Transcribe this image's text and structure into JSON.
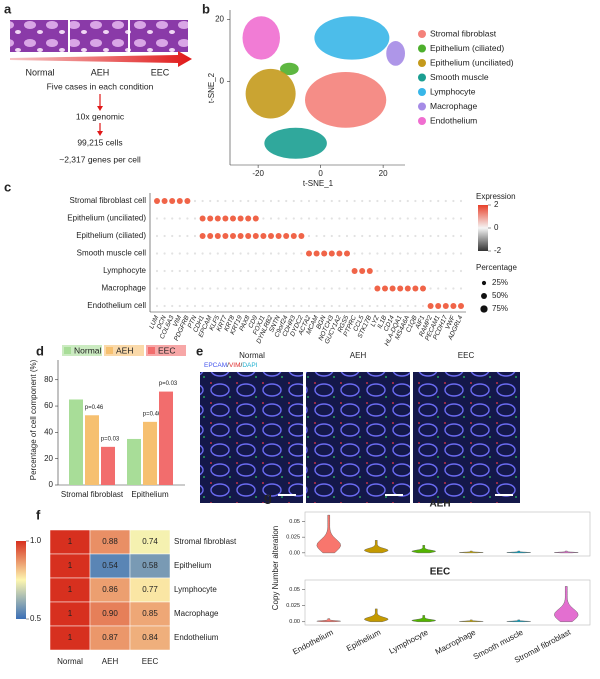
{
  "panel_labels": [
    "a",
    "b",
    "c",
    "d",
    "e",
    "f",
    "g"
  ],
  "a": {
    "conditions": [
      "Normal",
      "AEH",
      "EEC"
    ],
    "steps": [
      "Five cases in each condition",
      "10x genomic",
      "99,215 cells",
      "~2,317 genes per cell"
    ]
  },
  "b": {
    "type": "scatter",
    "x_label": "t-SNE_1",
    "y_label": "t-SNE_2",
    "xlim": [
      -29,
      27
    ],
    "ylim": [
      -27,
      23
    ],
    "xticks": [
      -20,
      0,
      20
    ],
    "yticks": [
      0,
      20
    ],
    "clusters": [
      {
        "name": "Stromal fibroblast",
        "color": "#f4817a",
        "center": [
          8,
          -6
        ],
        "spread": [
          13,
          9
        ]
      },
      {
        "name": "Epithelium (ciliated)",
        "color": "#4daf2c",
        "center": [
          -10,
          4
        ],
        "spread": [
          3,
          2
        ]
      },
      {
        "name": "Epithelium (unciliated)",
        "color": "#c49a1c",
        "center": [
          -16,
          -4
        ],
        "spread": [
          8,
          8
        ]
      },
      {
        "name": "Smooth muscle",
        "color": "#1a9e91",
        "center": [
          -8,
          -20
        ],
        "spread": [
          10,
          5
        ]
      },
      {
        "name": "Lymphocyte",
        "color": "#38b6e8",
        "center": [
          10,
          14
        ],
        "spread": [
          12,
          7
        ]
      },
      {
        "name": "Macrophage",
        "color": "#a58be6",
        "center": [
          24,
          9
        ],
        "spread": [
          3,
          4
        ]
      },
      {
        "name": "Endothelium",
        "color": "#f06ed0",
        "center": [
          -19,
          14
        ],
        "spread": [
          6,
          7
        ]
      }
    ]
  },
  "c": {
    "type": "dotplot",
    "rows": [
      "Stromal fibroblast cell",
      "Epithelium (unciliated)",
      "Epithelium (ciliated)",
      "Smooth muscle cell",
      "Lymphocyte",
      "Macrophage",
      "Endothelium cell"
    ],
    "genes": [
      "LUM",
      "DCN",
      "COL6A3",
      "VIM",
      "PDGFRB",
      "PTN",
      "CDH1",
      "EPCAM",
      "KLF5",
      "KRT7",
      "KRT8",
      "KRT19",
      "PAX8",
      "CD9",
      "FOXJ1",
      "DYNLRB2",
      "SNTN",
      "C9orf24",
      "CDHR3",
      "DYDC2",
      "ACTA2",
      "MCAM",
      "BGN",
      "NOTCH3",
      "GUCY1A2",
      "RGS5",
      "PTPRC",
      "CCL5",
      "STK17B",
      "LYZ",
      "IL1B",
      "CD14",
      "HLA-DQA1",
      "MS4A6A",
      "C1QB",
      "AIF1",
      "RAMP2",
      "PECAM1",
      "PCDH17",
      "VWF",
      "ADGRL4"
    ],
    "markers": [
      [
        "LUM",
        "DCN",
        "COL6A3",
        "VIM",
        "PDGFRB"
      ],
      [
        "CDH1",
        "EPCAM",
        "KLF5",
        "KRT7",
        "KRT8",
        "KRT19",
        "PAX8",
        "CD9"
      ],
      [
        "CDH1",
        "EPCAM",
        "KLF5",
        "KRT7",
        "KRT8",
        "KRT19",
        "PAX8",
        "CD9",
        "FOXJ1",
        "DYNLRB2",
        "SNTN",
        "C9orf24",
        "CDHR3",
        "DYDC2"
      ],
      [
        "ACTA2",
        "MCAM",
        "BGN",
        "NOTCH3",
        "GUCY1A2",
        "RGS5"
      ],
      [
        "PTPRC",
        "CCL5",
        "STK17B"
      ],
      [
        "LYZ",
        "IL1B",
        "CD14",
        "HLA-DQA1",
        "MS4A6A",
        "C1QB",
        "AIF1"
      ],
      [
        "RAMP2",
        "PECAM1",
        "PCDH17",
        "VWF",
        "ADGRL4"
      ]
    ],
    "expression_title": "Expression",
    "expression_ticks": [
      2,
      0,
      -2
    ],
    "percentage_title": "Percentage",
    "percentage_ticks": [
      {
        "value": 25,
        "label": "25%"
      },
      {
        "value": 50,
        "label": "50%"
      },
      {
        "value": 75,
        "label": "75%"
      }
    ]
  },
  "d": {
    "type": "bar",
    "y_label": "Percentage of cell component (%)",
    "categories": [
      "Stromal fibroblast",
      "Epithelium"
    ],
    "series": [
      {
        "name": "Normal",
        "color": "#a8dd98",
        "values": [
          65,
          35
        ]
      },
      {
        "name": "AEH",
        "color": "#f6c070",
        "values": [
          53,
          48
        ]
      },
      {
        "name": "EEC",
        "color": "#f26d6d",
        "values": [
          29,
          71
        ]
      }
    ],
    "annotations": [
      "p=0.46",
      "p=0.03",
      "p=0.46",
      "p=0.03"
    ],
    "ylim": [
      0,
      95
    ],
    "yticks": [
      0,
      20,
      40,
      60,
      80
    ]
  },
  "e": {
    "conditions": [
      "Normal",
      "AEH",
      "EEC"
    ],
    "stain": [
      "EPCAM",
      "/",
      "VIM",
      "/",
      "DAPI"
    ]
  },
  "f": {
    "type": "heatmap",
    "rows": [
      "Stromal fibroblast",
      "Epithelium",
      "Lymphocyte",
      "Macrophage",
      "Endothelium"
    ],
    "columns": [
      "Normal",
      "AEH",
      "EEC"
    ],
    "values": [
      [
        1,
        0.88,
        0.74
      ],
      [
        1,
        0.54,
        0.58
      ],
      [
        1,
        0.86,
        0.77
      ],
      [
        1,
        0.9,
        0.85
      ],
      [
        1,
        0.87,
        0.84
      ]
    ],
    "value_labels": [
      [
        "1",
        "0.88",
        "0.74"
      ],
      [
        "1",
        "0.54",
        "0.58"
      ],
      [
        "1",
        "0.86",
        "0.77"
      ],
      [
        "1",
        "0.90",
        "0.85"
      ],
      [
        "1",
        "0.87",
        "0.84"
      ]
    ],
    "colorbar_ticks": [
      {
        "value": 1,
        "label": "1.0"
      },
      {
        "value": 0.5,
        "label": "0.5"
      }
    ]
  },
  "g": {
    "type": "violin",
    "y_label": "Copy  Number alteration",
    "categories": [
      "Endothelium",
      "Epithelium",
      "Lymphocyte",
      "Macrophage",
      "Smooth muscle",
      "Stromal fibroblast"
    ],
    "colors": [
      "#f8766d",
      "#c49a00",
      "#53b400",
      "#c8a800",
      "#00a6c8",
      "#e36fd0"
    ],
    "panels": [
      {
        "title": "AEH",
        "values": [
          0.06,
          0.02,
          0.012,
          0.003,
          0.003,
          0.003
        ]
      },
      {
        "title": "EEC",
        "values": [
          0.005,
          0.02,
          0.01,
          0.003,
          0.003,
          0.055
        ]
      }
    ],
    "ylim": [
      -0.005,
      0.065
    ],
    "yticks": [
      {
        "value": 0,
        "label": "0.00"
      },
      0.025,
      0.05
    ]
  }
}
